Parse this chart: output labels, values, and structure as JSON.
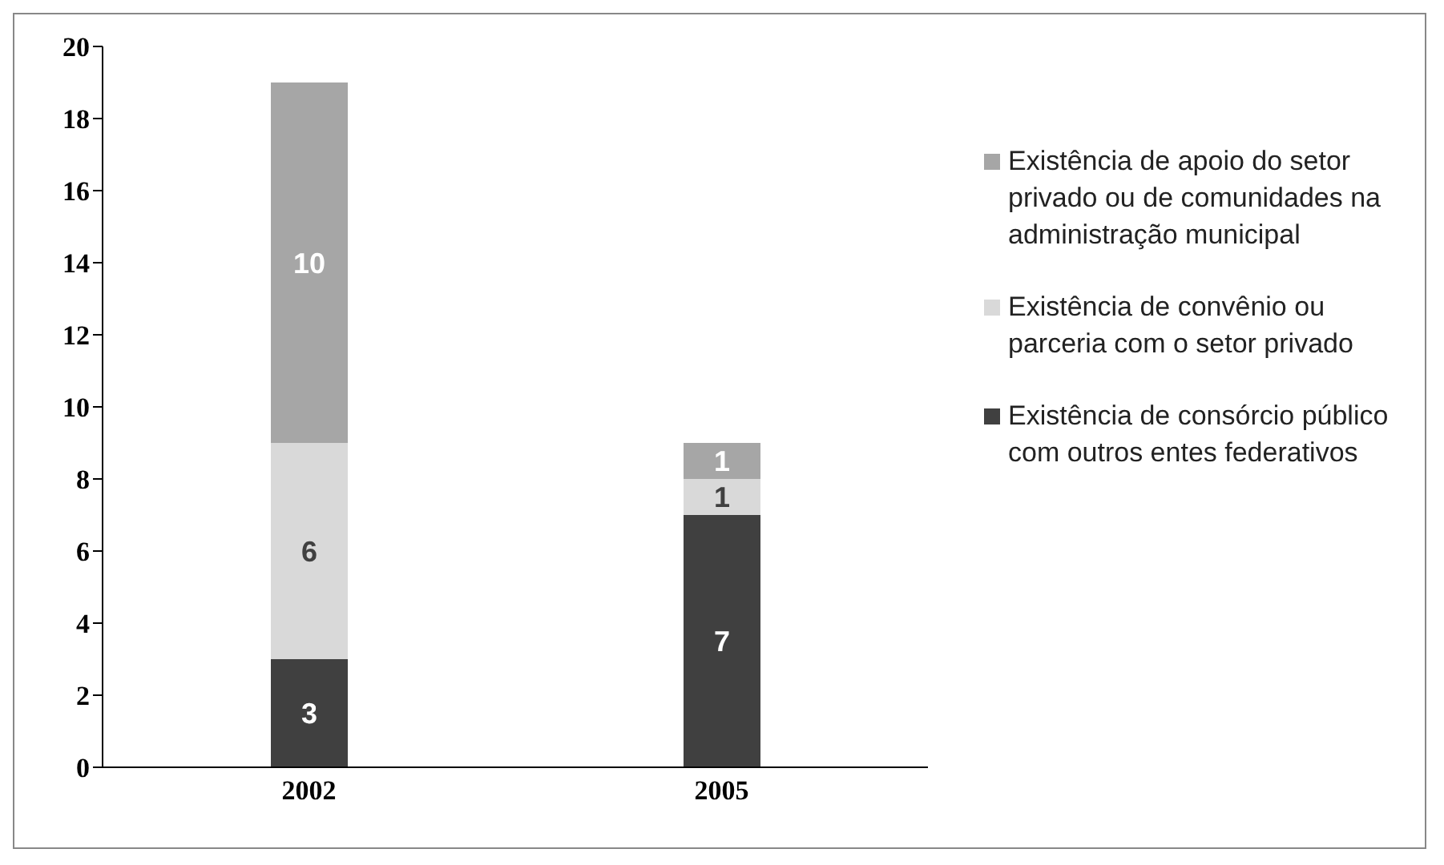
{
  "chart_data": {
    "type": "bar",
    "stacked": true,
    "categories": [
      "2002",
      "2005"
    ],
    "series": [
      {
        "name": "Existência de consórcio público com outros entes federativos",
        "color": "#404040",
        "values": [
          3,
          7
        ]
      },
      {
        "name": "Existência de convênio ou parceria com o setor privado",
        "color": "#d9d9d9",
        "values": [
          6,
          1
        ]
      },
      {
        "name": "Existência de apoio do setor privado ou de comunidades na administração municipal",
        "color": "#a6a6a6",
        "values": [
          10,
          1
        ]
      }
    ],
    "ylim": [
      0,
      20
    ],
    "yticks": [
      0,
      2,
      4,
      6,
      8,
      10,
      12,
      14,
      16,
      18,
      20
    ],
    "grid": false,
    "legend": "right",
    "data_labels": true
  }
}
